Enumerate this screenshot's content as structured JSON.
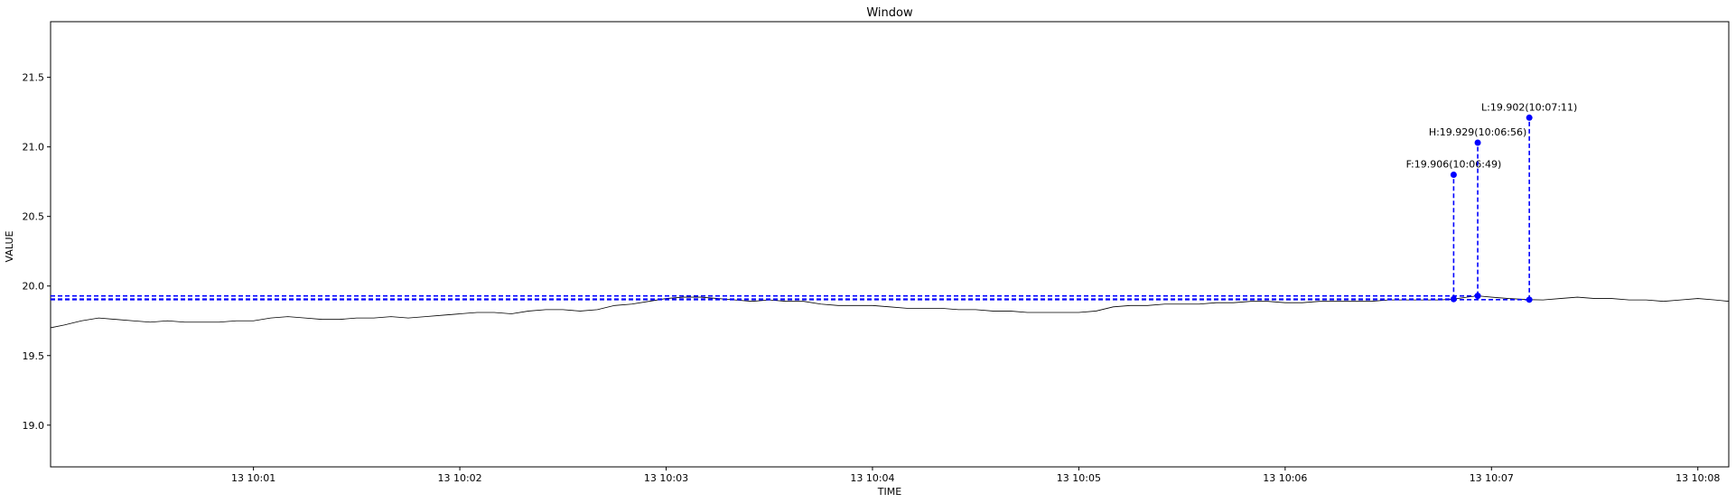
{
  "chart_data": {
    "type": "line",
    "title": "Window",
    "xlabel": "TIME",
    "ylabel": "VALUE",
    "x_unit": "time (date 13, hh:mm:ss)",
    "xlim": [
      "10:00:01",
      "10:08:09"
    ],
    "ylim": [
      18.7,
      21.9
    ],
    "x_ticks": [
      {
        "t": "10:01:00",
        "label": "13 10:01"
      },
      {
        "t": "10:02:00",
        "label": "13 10:02"
      },
      {
        "t": "10:03:00",
        "label": "13 10:03"
      },
      {
        "t": "10:04:00",
        "label": "13 10:04"
      },
      {
        "t": "10:05:00",
        "label": "13 10:05"
      },
      {
        "t": "10:06:00",
        "label": "13 10:06"
      },
      {
        "t": "10:07:00",
        "label": "13 10:07"
      },
      {
        "t": "10:08:00",
        "label": "13 10:08"
      }
    ],
    "y_ticks": [
      {
        "v": 19.0,
        "label": "19.0"
      },
      {
        "v": 19.5,
        "label": "19.5"
      },
      {
        "v": 20.0,
        "label": "20.0"
      },
      {
        "v": 20.5,
        "label": "20.5"
      },
      {
        "v": 21.0,
        "label": "21.0"
      },
      {
        "v": 21.5,
        "label": "21.5"
      }
    ],
    "grid": false,
    "legend": "none",
    "series": [
      {
        "color": "#000000",
        "points": [
          [
            "10:00:01",
            19.7
          ],
          [
            "10:00:05",
            19.72
          ],
          [
            "10:00:10",
            19.75
          ],
          [
            "10:00:15",
            19.77
          ],
          [
            "10:00:20",
            19.76
          ],
          [
            "10:00:25",
            19.75
          ],
          [
            "10:00:30",
            19.74
          ],
          [
            "10:00:35",
            19.75
          ],
          [
            "10:00:40",
            19.74
          ],
          [
            "10:00:45",
            19.74
          ],
          [
            "10:00:50",
            19.74
          ],
          [
            "10:00:55",
            19.75
          ],
          [
            "10:01:00",
            19.75
          ],
          [
            "10:01:05",
            19.77
          ],
          [
            "10:01:10",
            19.78
          ],
          [
            "10:01:15",
            19.77
          ],
          [
            "10:01:20",
            19.76
          ],
          [
            "10:01:25",
            19.76
          ],
          [
            "10:01:30",
            19.77
          ],
          [
            "10:01:35",
            19.77
          ],
          [
            "10:01:40",
            19.78
          ],
          [
            "10:01:45",
            19.77
          ],
          [
            "10:01:50",
            19.78
          ],
          [
            "10:01:55",
            19.79
          ],
          [
            "10:02:00",
            19.8
          ],
          [
            "10:02:05",
            19.81
          ],
          [
            "10:02:10",
            19.81
          ],
          [
            "10:02:15",
            19.8
          ],
          [
            "10:02:20",
            19.82
          ],
          [
            "10:02:25",
            19.83
          ],
          [
            "10:02:30",
            19.83
          ],
          [
            "10:02:35",
            19.82
          ],
          [
            "10:02:40",
            19.83
          ],
          [
            "10:02:45",
            19.86
          ],
          [
            "10:02:50",
            19.87
          ],
          [
            "10:02:55",
            19.89
          ],
          [
            "10:03:00",
            19.91
          ],
          [
            "10:03:05",
            19.92
          ],
          [
            "10:03:10",
            19.92
          ],
          [
            "10:03:15",
            19.91
          ],
          [
            "10:03:20",
            19.9
          ],
          [
            "10:03:25",
            19.89
          ],
          [
            "10:03:30",
            19.9
          ],
          [
            "10:03:35",
            19.89
          ],
          [
            "10:03:40",
            19.89
          ],
          [
            "10:03:45",
            19.87
          ],
          [
            "10:03:50",
            19.86
          ],
          [
            "10:03:55",
            19.86
          ],
          [
            "10:04:00",
            19.86
          ],
          [
            "10:04:05",
            19.85
          ],
          [
            "10:04:10",
            19.84
          ],
          [
            "10:04:15",
            19.84
          ],
          [
            "10:04:20",
            19.84
          ],
          [
            "10:04:25",
            19.83
          ],
          [
            "10:04:30",
            19.83
          ],
          [
            "10:04:35",
            19.82
          ],
          [
            "10:04:40",
            19.82
          ],
          [
            "10:04:45",
            19.81
          ],
          [
            "10:04:50",
            19.81
          ],
          [
            "10:04:55",
            19.81
          ],
          [
            "10:05:00",
            19.81
          ],
          [
            "10:05:05",
            19.82
          ],
          [
            "10:05:10",
            19.85
          ],
          [
            "10:05:15",
            19.86
          ],
          [
            "10:05:20",
            19.86
          ],
          [
            "10:05:25",
            19.87
          ],
          [
            "10:05:30",
            19.87
          ],
          [
            "10:05:35",
            19.87
          ],
          [
            "10:05:40",
            19.88
          ],
          [
            "10:05:45",
            19.88
          ],
          [
            "10:05:50",
            19.89
          ],
          [
            "10:05:55",
            19.89
          ],
          [
            "10:06:00",
            19.88
          ],
          [
            "10:06:05",
            19.88
          ],
          [
            "10:06:10",
            19.89
          ],
          [
            "10:06:15",
            19.89
          ],
          [
            "10:06:20",
            19.89
          ],
          [
            "10:06:25",
            19.89
          ],
          [
            "10:06:30",
            19.9
          ],
          [
            "10:06:35",
            19.9
          ],
          [
            "10:06:40",
            19.9
          ],
          [
            "10:06:45",
            19.9
          ],
          [
            "10:06:49",
            19.906
          ],
          [
            "10:06:53",
            19.92
          ],
          [
            "10:06:56",
            19.929
          ],
          [
            "10:07:00",
            19.92
          ],
          [
            "10:07:05",
            19.91
          ],
          [
            "10:07:11",
            19.902
          ],
          [
            "10:07:15",
            19.9
          ],
          [
            "10:07:20",
            19.91
          ],
          [
            "10:07:25",
            19.92
          ],
          [
            "10:07:30",
            19.91
          ],
          [
            "10:07:35",
            19.91
          ],
          [
            "10:07:40",
            19.9
          ],
          [
            "10:07:45",
            19.9
          ],
          [
            "10:07:50",
            19.89
          ],
          [
            "10:07:55",
            19.9
          ],
          [
            "10:08:00",
            19.91
          ],
          [
            "10:08:05",
            19.9
          ],
          [
            "10:08:09",
            19.89
          ]
        ]
      }
    ],
    "markers": [
      {
        "key": "F",
        "label": "F:19.906(10:06:49)",
        "t": "10:06:49",
        "value": 19.906,
        "stem_top": 20.8,
        "color": "#0000ff"
      },
      {
        "key": "H",
        "label": "H:19.929(10:06:56)",
        "t": "10:06:56",
        "value": 19.929,
        "stem_top": 21.03,
        "color": "#0000ff"
      },
      {
        "key": "L",
        "label": "L:19.902(10:07:11)",
        "t": "10:07:11",
        "value": 19.902,
        "stem_top": 21.21,
        "color": "#0000ff"
      }
    ]
  }
}
